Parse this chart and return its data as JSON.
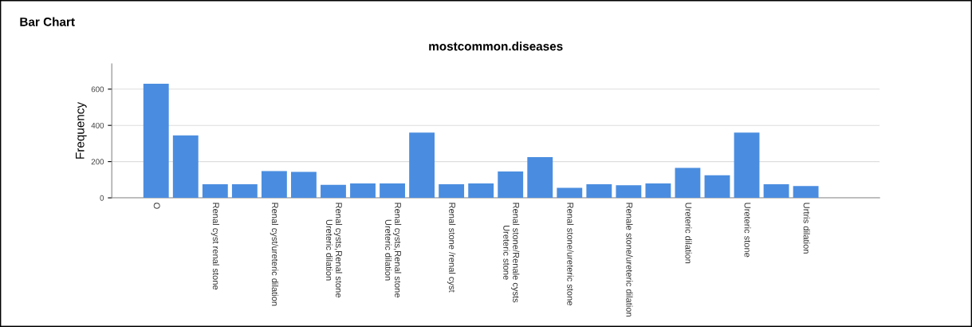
{
  "chart_data": {
    "type": "bar",
    "title": "mostcommon.diseases",
    "ylabel": "Frequency",
    "annotations": [
      "Bar Chart"
    ],
    "categories": [
      "O",
      null,
      "Renal cyst renal stone",
      null,
      "Renal cyst/ureteric dilation",
      null,
      "Renal cysts,Renal stone\nUreteric dilation",
      null,
      "Renal cysts,Renal stone\nUreteric dilation",
      null,
      "Renal stone /renal cyst",
      null,
      "Renal stone/Renale cysts\nUreteric stone",
      null,
      "Renal stone/ureteric stone",
      null,
      "Renale stone/ureteric dilation",
      null,
      "Ureteric dilation",
      null,
      "Ureteric stone",
      null,
      "Urtris dilation"
    ],
    "values": [
      630,
      345,
      75,
      75,
      148,
      143,
      72,
      80,
      80,
      360,
      75,
      80,
      145,
      225,
      55,
      75,
      70,
      80,
      165,
      125,
      360,
      75,
      65
    ],
    "color": "#4a8de0",
    "ylim": [
      0,
      740
    ],
    "yticks": [
      0,
      200,
      400,
      600
    ],
    "grid": "y"
  }
}
